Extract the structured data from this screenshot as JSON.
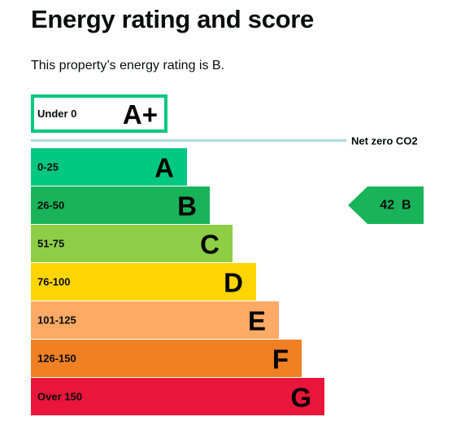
{
  "header": {
    "title": "Energy rating and score",
    "summary": "This property’s energy rating is B."
  },
  "chart_data": {
    "type": "bar",
    "bands": [
      {
        "letter": "A+",
        "range": "Under 0",
        "color": "#00c781",
        "outline_only": true
      },
      {
        "letter": "A",
        "range": "0-25",
        "color": "#00c781"
      },
      {
        "letter": "B",
        "range": "26-50",
        "color": "#19b459"
      },
      {
        "letter": "C",
        "range": "51-75",
        "color": "#8dce46"
      },
      {
        "letter": "D",
        "range": "76-100",
        "color": "#ffd500"
      },
      {
        "letter": "E",
        "range": "101-125",
        "color": "#fcaa65"
      },
      {
        "letter": "F",
        "range": "126-150",
        "color": "#ef8023"
      },
      {
        "letter": "G",
        "range": "Over 150",
        "color": "#e9153b"
      }
    ],
    "net_zero_label": "Net zero CO2",
    "net_zero_color": "#b1d7e3",
    "current_rating": {
      "score": "42",
      "letter": "B",
      "color": "#19b459"
    }
  }
}
